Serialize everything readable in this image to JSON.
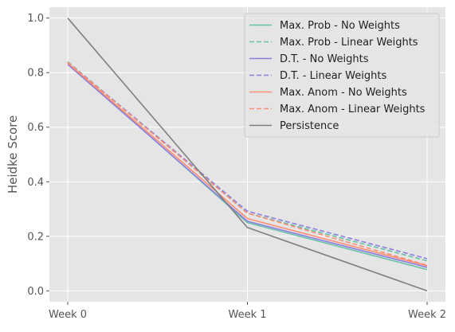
{
  "chart_data": {
    "type": "line",
    "title": "",
    "xlabel": "",
    "ylabel": "Heidke Score",
    "x": [
      "Week 0",
      "Week 1",
      "Week 2"
    ],
    "ylim": [
      -0.04,
      1.04
    ],
    "yticks": [
      0.0,
      0.2,
      0.4,
      0.6,
      0.8,
      1.0
    ],
    "ytick_labels": [
      "0.0",
      "0.2",
      "0.4",
      "0.6",
      "0.8",
      "1.0"
    ],
    "grid": true,
    "legend_position": "top-right",
    "series": [
      {
        "name": "Max. Prob - No Weights",
        "color": "#66c2a5",
        "dash": "solid",
        "values": [
          0.835,
          0.25,
          0.078
        ]
      },
      {
        "name": "Max. Prob - Linear Weights",
        "color": "#66c2a5",
        "dash": "dashed",
        "values": [
          0.84,
          0.285,
          0.11
        ]
      },
      {
        "name": "D.T. - No Weights",
        "color": "#8c7fe0",
        "dash": "solid",
        "values": [
          0.83,
          0.255,
          0.086
        ]
      },
      {
        "name": "D.T. - Linear Weights",
        "color": "#8c7fe0",
        "dash": "dashed",
        "values": [
          0.838,
          0.292,
          0.118
        ]
      },
      {
        "name": "Max. Anom - No Weights",
        "color": "#fc8d72",
        "dash": "solid",
        "values": [
          0.835,
          0.265,
          0.092
        ]
      },
      {
        "name": "Max. Anom - Linear Weights",
        "color": "#fc8d72",
        "dash": "dashed",
        "values": [
          0.838,
          0.285,
          0.094
        ]
      },
      {
        "name": "Persistence",
        "color": "#7f7f7f",
        "dash": "solid",
        "values": [
          1.0,
          0.232,
          0.0
        ]
      }
    ]
  }
}
